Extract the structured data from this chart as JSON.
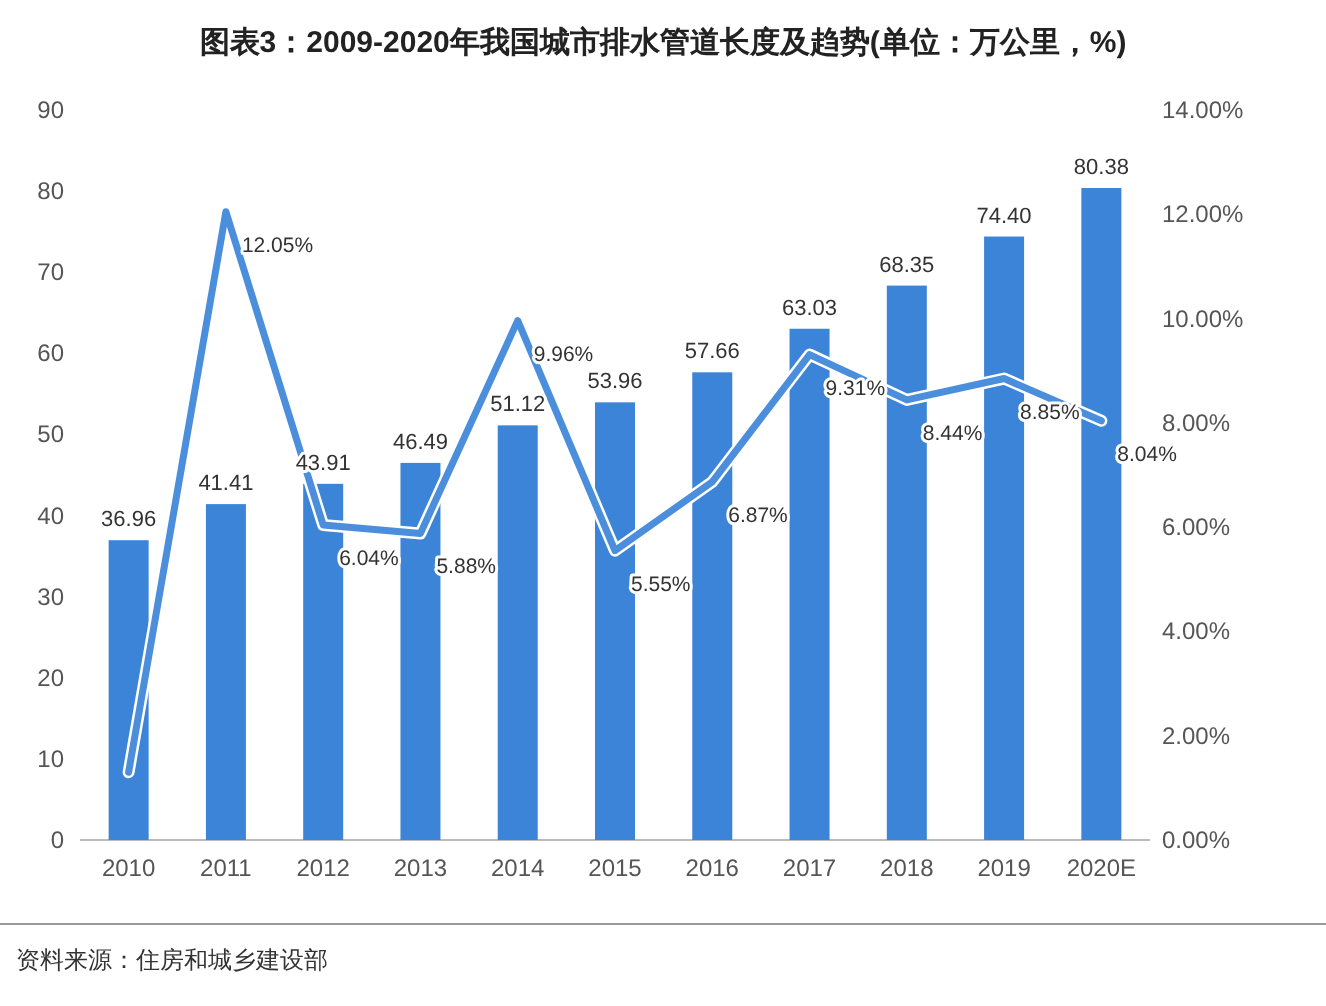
{
  "chart_data": {
    "type": "bar",
    "title": "图表3：2009-2020年我国城市排水管道长度及趋势(单位：万公里，%)",
    "categories": [
      "2010",
      "2011",
      "2012",
      "2013",
      "2014",
      "2015",
      "2016",
      "2017",
      "2018",
      "2019",
      "2020E"
    ],
    "series": [
      {
        "color": "#3c84d8",
        "values": [
          36.96,
          41.41,
          43.91,
          46.49,
          51.12,
          53.96,
          57.66,
          63.03,
          68.35,
          74.4,
          80.38
        ],
        "value_labels": [
          "36.96",
          "41.41",
          "43.91",
          "46.49",
          "51.12",
          "53.96",
          "57.66",
          "63.03",
          "68.35",
          "74.40",
          "80.38"
        ]
      },
      {
        "type": "line",
        "axis": "y2",
        "color": "#4a8edc",
        "marker": "none",
        "values": [
          1.3,
          12.05,
          6.04,
          5.88,
          9.96,
          5.55,
          6.87,
          9.31,
          8.44,
          8.85,
          8.04
        ],
        "value_labels": [
          null,
          "12.05%",
          "6.04%",
          "5.88%",
          "9.96%",
          "5.55%",
          "6.87%",
          "9.31%",
          "8.44%",
          "8.85%",
          "8.04%"
        ]
      }
    ],
    "ylim": [
      0,
      90
    ],
    "yticks": [
      0,
      10,
      20,
      30,
      40,
      50,
      60,
      70,
      80,
      90
    ],
    "y2lim": [
      0,
      14
    ],
    "y2ticks": [
      {
        "value": 0,
        "label": "0.00%"
      },
      {
        "value": 2,
        "label": "2.00%"
      },
      {
        "value": 4,
        "label": "4.00%"
      },
      {
        "value": 6,
        "label": "6.00%"
      },
      {
        "value": 8,
        "label": "8.00%"
      },
      {
        "value": 10,
        "label": "10.00%"
      },
      {
        "value": 12,
        "label": "12.00%"
      },
      {
        "value": 14,
        "label": "14.00%"
      }
    ],
    "annotations": [
      "资料来源：住房和城乡建设部"
    ]
  }
}
